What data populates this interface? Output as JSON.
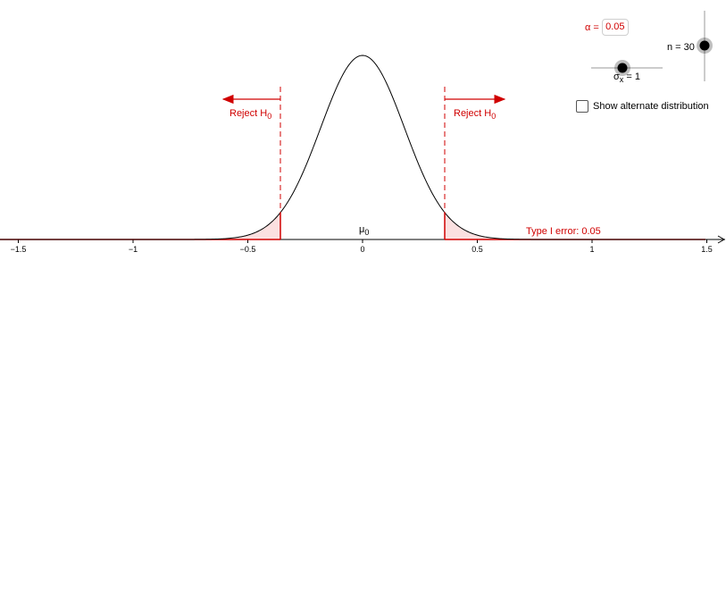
{
  "alpha": {
    "label": "α =",
    "value": "0.05"
  },
  "n_slider": {
    "label": "n = 30",
    "value": 30
  },
  "sigma_slider": {
    "symbol": "σ",
    "subscript": "x",
    "rest": " = 1",
    "value": 1
  },
  "checkbox": {
    "label": "Show alternate distribution",
    "checked": false
  },
  "reject_left": {
    "text": "Reject H",
    "subscript": "0"
  },
  "reject_right": {
    "text": "Reject H",
    "subscript": "0"
  },
  "mu_label": {
    "text": "μ",
    "subscript": "0"
  },
  "type1_label": "Type I error: 0.05",
  "colors": {
    "red": "#d00000",
    "fill": "#fbe0e0",
    "axis": "#000000"
  },
  "chart_data": {
    "type": "line",
    "x_ticks": [
      "−1.5",
      "−1",
      "−0.5",
      "0",
      "0.5",
      "1",
      "1.5"
    ],
    "x_tick_values": [
      -1.5,
      -1,
      -0.5,
      0,
      0.5,
      1,
      1.5
    ],
    "xlim": [
      -1.58,
      1.58
    ],
    "mean": 0,
    "sd": 0.1826,
    "critical_values": [
      -0.358,
      0.358
    ]
  }
}
